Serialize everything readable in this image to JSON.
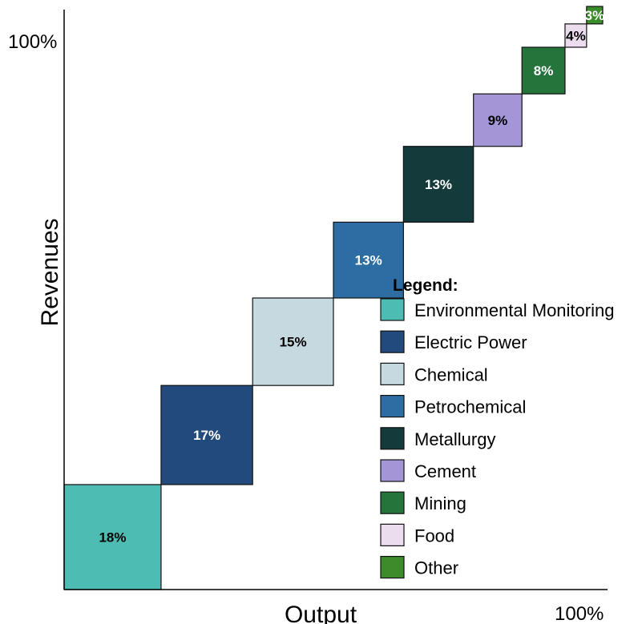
{
  "chart_data": {
    "type": "bar",
    "title": "",
    "xlabel": "Output",
    "ylabel": "Revenues",
    "x_end_label": "100%",
    "y_end_label": "100%",
    "legend_title": "Legend:",
    "legend_position": "right",
    "grid": false,
    "categories": [
      "Environmental Monitoring",
      "Electric Power",
      "Chemical",
      "Petrochemical",
      "Metallurgy",
      "Cement",
      "Mining",
      "Food",
      "Other"
    ],
    "values": [
      18,
      17,
      15,
      13,
      13,
      9,
      8,
      4,
      3
    ],
    "value_labels": [
      "18%",
      "17%",
      "15%",
      "13%",
      "13%",
      "9%",
      "8%",
      "4%",
      "3%"
    ],
    "colors": [
      "#4dbdb4",
      "#234a7c",
      "#c6d9e1",
      "#2d6da3",
      "#143a3b",
      "#a496d6",
      "#25743c",
      "#ebdcee",
      "#3c8c2c"
    ],
    "label_colors": [
      "#000000",
      "#ffffff",
      "#000000",
      "#ffffff",
      "#ffffff",
      "#000000",
      "#ffffff",
      "#000000",
      "#ffffff"
    ]
  }
}
